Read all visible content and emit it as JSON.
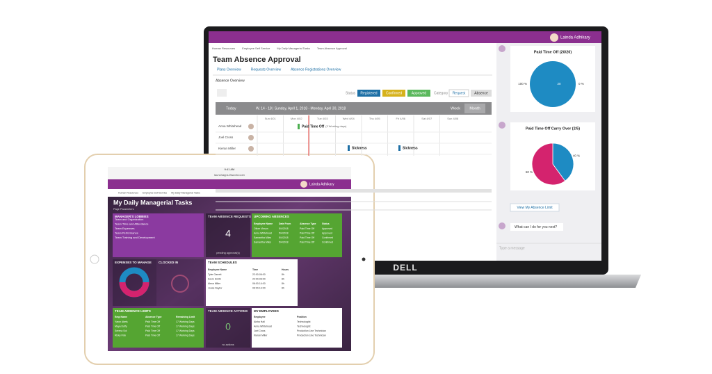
{
  "laptop": {
    "user": "Lainda Adhikary",
    "breadcrumb": [
      "Human Resources",
      "Employee Self Service",
      "My Daily Managerial Tasks",
      "Team Absence Approval"
    ],
    "title": "Team Absence Approval",
    "tabs": [
      "Plans Overview",
      "Requests Overview",
      "Absence Registrations Overview"
    ],
    "section": "Absence Overview",
    "status_label": "Status",
    "statuses": [
      {
        "label": "Registered",
        "color": "#1d6fa5"
      },
      {
        "label": "Confirmed",
        "color": "#d6b21c"
      },
      {
        "label": "Approved",
        "color": "#5bb85d"
      }
    ],
    "category_label": "Category",
    "categories": [
      "Request",
      "Absence"
    ],
    "gantt": {
      "today": "Today",
      "range": "W. 14 - 18 | Sunday, April 1, 2018 - Monday, April 30, 2018",
      "views": [
        "Week",
        "Month"
      ],
      "days": [
        "Sun 4/01",
        "Mon 4/02",
        "Tue 4/03",
        "Wed 4/04",
        "Thu 4/05",
        "Fri 4/06",
        "Sat 4/07",
        "Sun 4/08"
      ],
      "rows": [
        "Anna Whitehead",
        "Joel Cross",
        "Kieran Miller"
      ],
      "bars": [
        {
          "label": "Paid Time Off",
          "note": "(3 Working days)",
          "color": "#4caf50"
        },
        {
          "label": "Sickness",
          "color": "#1d6fa5"
        },
        {
          "label": "Sickness",
          "color": "#1d6fa5"
        }
      ]
    },
    "chat": {
      "pies": [
        {
          "title": "Paid Time Off (20/20)",
          "center": "20",
          "slices": [
            {
              "value": 100,
              "label": "100 %",
              "color": "#1e8bc3"
            },
            {
              "value": 0,
              "label": "0 %",
              "color": "#d4236e"
            }
          ]
        },
        {
          "title": "Paid Time Off Carry Over (2/5)",
          "slices": [
            {
              "value": 40,
              "label": "40 %",
              "color": "#1e8bc3"
            },
            {
              "value": 60,
              "label": "60 %",
              "color": "#d4236e"
            }
          ]
        }
      ],
      "button": "View My Absence Limit",
      "question": "What can I do for you next?",
      "input": "Type a message"
    }
  },
  "brand": "DELL",
  "tablet": {
    "time": "9:41 AM",
    "url": "launchapps.ifsworld.com",
    "user": "Lainda Adhikary",
    "breadcrumb": [
      "Human Resources",
      "Employee Self Service",
      "My Daily Managerial Tasks"
    ],
    "title": "My Daily Managerial Tasks",
    "subtitle": "Page Parameters",
    "lobbies": {
      "title": "MANAGER'S LOBBIES",
      "items": [
        "Team and Organization",
        "Team Time and Attendance",
        "Team Expenses",
        "Team Performance",
        "Team Training and Development"
      ]
    },
    "requests": {
      "title": "TEAM ABSENCE REQUESTS",
      "count": 4,
      "caption": "pending approval(s)"
    },
    "upcoming": {
      "title": "UPCOMING ABSENCES",
      "columns": [
        "Employee Name",
        "Date From",
        "Absence Type",
        "Status"
      ],
      "rows": [
        [
          "Oliver Vinson",
          "5/4/2018",
          "Paid Time Off",
          "Approved"
        ],
        [
          "Anna Whitehead",
          "5/4/2018",
          "Paid Time Off",
          "Approved"
        ],
        [
          "Samantha Miles",
          "5/4/2018",
          "Paid Time Off",
          "Confirmed"
        ],
        [
          "Samantha Miles",
          "5/4/2018",
          "Paid Time Off",
          "Confirmed"
        ]
      ]
    },
    "expenses": {
      "title": "EXPENSES TO MANAGE"
    },
    "clocked": {
      "title": "CLOCKED IN"
    },
    "schedules": {
      "title": "TEAM SCHEDULES",
      "columns": [
        "Employee Name",
        "Time",
        "Hours"
      ],
      "rows": [
        [
          "Tyler Garrett",
          "22:00-06:00",
          "8h"
        ],
        [
          "Kevin Smith",
          "22:00-06:00",
          "8h"
        ],
        [
          "Alexa Miller",
          "06:00-14:00",
          "8h"
        ],
        [
          "Jonas Naylor",
          "06:00-14:00",
          "8h"
        ]
      ]
    },
    "limits": {
      "title": "TEAM ABSENCE LIMITS",
      "columns": [
        "Emp Name",
        "Absence Type",
        "Remaining Limit"
      ],
      "rows": [
        [
          "Yaron Abels",
          "Paid Time Off",
          "17 Working Days"
        ],
        [
          "Maya Duffy",
          "Paid Time Off",
          "17 Working Days"
        ],
        [
          "Serena Sol",
          "Paid Time Off",
          "17 Working Days"
        ],
        [
          "Ricky Fisk",
          "Paid Time Off",
          "17 Working Days"
        ]
      ]
    },
    "actions": {
      "title": "TEAM ABSENCE ACTIONS",
      "count": 0,
      "caption": "no actions"
    },
    "employees": {
      "title": "MY EMPLOYEES",
      "columns": [
        "Employee",
        "Position"
      ],
      "rows": [
        [
          "Aisha Hall",
          "Technologist"
        ],
        [
          "Anna Whitehead",
          "Technologist"
        ],
        [
          "Joel Cross",
          "Production Line Technician"
        ],
        [
          "Kieran Miller",
          "Production Line Technician"
        ]
      ]
    }
  }
}
